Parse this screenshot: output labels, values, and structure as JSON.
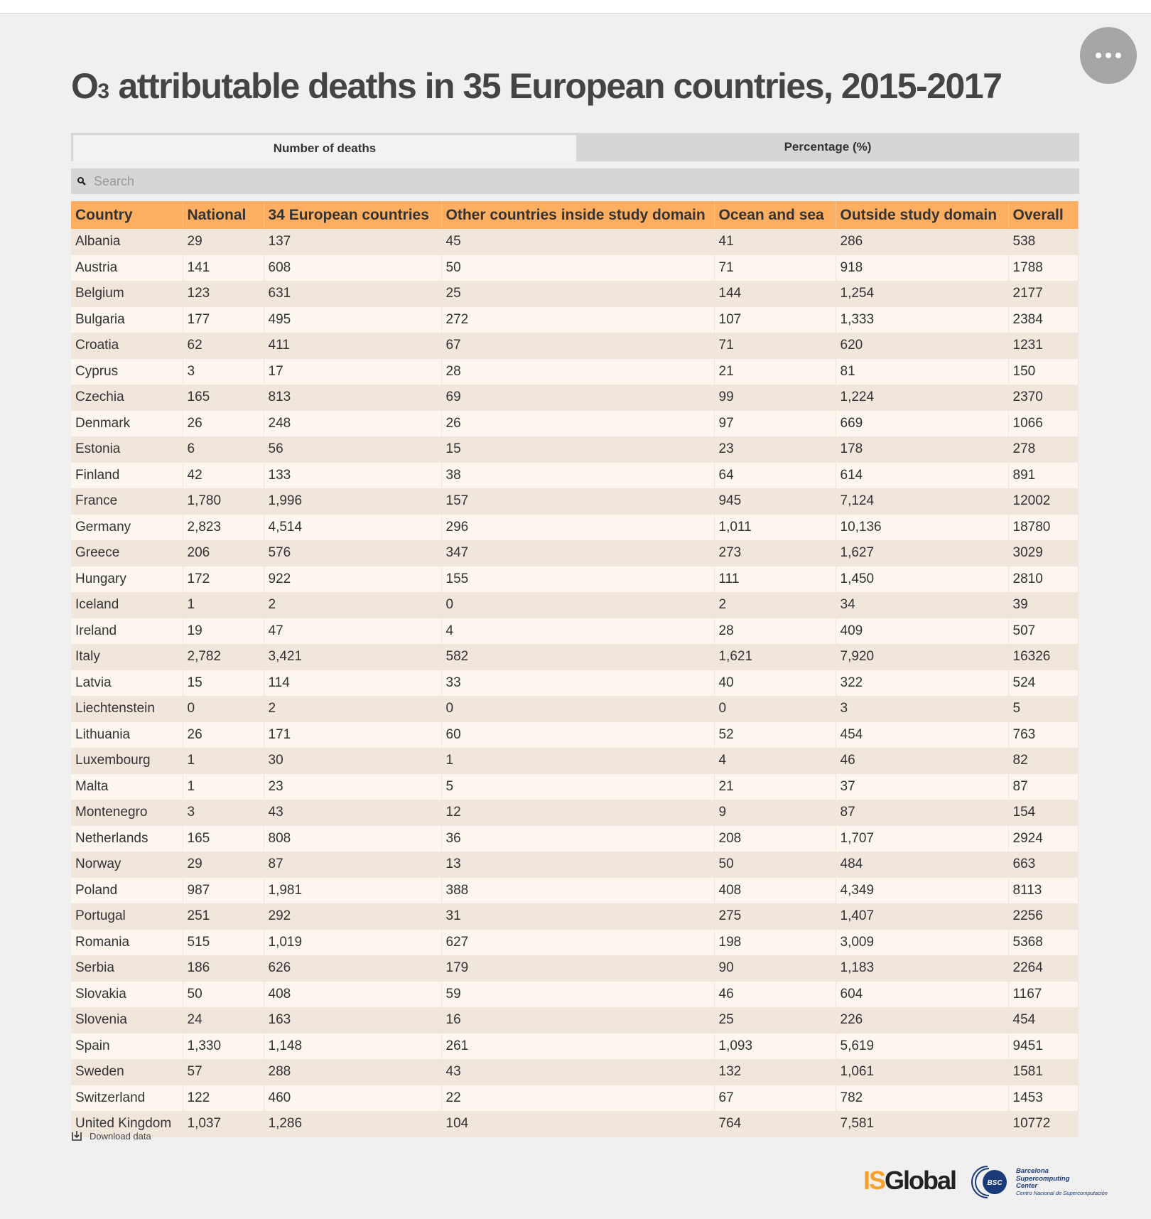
{
  "title": {
    "main": "O",
    "sub": "3",
    "rest": " attributable deaths in 35 European countries, 2015-2017"
  },
  "tabs": [
    {
      "label": "Number of deaths",
      "active": true
    },
    {
      "label": "Percentage (%)",
      "active": false
    }
  ],
  "search": {
    "placeholder": "Search",
    "value": ""
  },
  "table": {
    "headers": [
      "Country",
      "National",
      "34 European countries",
      "Other countries inside study domain",
      "Ocean and sea",
      "Outside study domain",
      "Overall"
    ],
    "rows": [
      [
        "Albania",
        "29",
        "137",
        "45",
        "41",
        "286",
        "538"
      ],
      [
        "Austria",
        "141",
        "608",
        "50",
        "71",
        "918",
        "1788"
      ],
      [
        "Belgium",
        "123",
        "631",
        "25",
        "144",
        "1,254",
        "2177"
      ],
      [
        "Bulgaria",
        "177",
        "495",
        "272",
        "107",
        "1,333",
        "2384"
      ],
      [
        "Croatia",
        "62",
        "411",
        "67",
        "71",
        "620",
        "1231"
      ],
      [
        "Cyprus",
        "3",
        "17",
        "28",
        "21",
        "81",
        "150"
      ],
      [
        "Czechia",
        "165",
        "813",
        "69",
        "99",
        "1,224",
        "2370"
      ],
      [
        "Denmark",
        "26",
        "248",
        "26",
        "97",
        "669",
        "1066"
      ],
      [
        "Estonia",
        "6",
        "56",
        "15",
        "23",
        "178",
        "278"
      ],
      [
        "Finland",
        "42",
        "133",
        "38",
        "64",
        "614",
        "891"
      ],
      [
        "France",
        "1,780",
        "1,996",
        "157",
        "945",
        "7,124",
        "12002"
      ],
      [
        "Germany",
        "2,823",
        "4,514",
        "296",
        "1,011",
        "10,136",
        "18780"
      ],
      [
        "Greece",
        "206",
        "576",
        "347",
        "273",
        "1,627",
        "3029"
      ],
      [
        "Hungary",
        "172",
        "922",
        "155",
        "111",
        "1,450",
        "2810"
      ],
      [
        "Iceland",
        "1",
        "2",
        "0",
        "2",
        "34",
        "39"
      ],
      [
        "Ireland",
        "19",
        "47",
        "4",
        "28",
        "409",
        "507"
      ],
      [
        "Italy",
        "2,782",
        "3,421",
        "582",
        "1,621",
        "7,920",
        "16326"
      ],
      [
        "Latvia",
        "15",
        "114",
        "33",
        "40",
        "322",
        "524"
      ],
      [
        "Liechtenstein",
        "0",
        "2",
        "0",
        "0",
        "3",
        "5"
      ],
      [
        "Lithuania",
        "26",
        "171",
        "60",
        "52",
        "454",
        "763"
      ],
      [
        "Luxembourg",
        "1",
        "30",
        "1",
        "4",
        "46",
        "82"
      ],
      [
        "Malta",
        "1",
        "23",
        "5",
        "21",
        "37",
        "87"
      ],
      [
        "Montenegro",
        "3",
        "43",
        "12",
        "9",
        "87",
        "154"
      ],
      [
        "Netherlands",
        "165",
        "808",
        "36",
        "208",
        "1,707",
        "2924"
      ],
      [
        "Norway",
        "29",
        "87",
        "13",
        "50",
        "484",
        "663"
      ],
      [
        "Poland",
        "987",
        "1,981",
        "388",
        "408",
        "4,349",
        "8113"
      ],
      [
        "Portugal",
        "251",
        "292",
        "31",
        "275",
        "1,407",
        "2256"
      ],
      [
        "Romania",
        "515",
        "1,019",
        "627",
        "198",
        "3,009",
        "5368"
      ],
      [
        "Serbia",
        "186",
        "626",
        "179",
        "90",
        "1,183",
        "2264"
      ],
      [
        "Slovakia",
        "50",
        "408",
        "59",
        "46",
        "604",
        "1167"
      ],
      [
        "Slovenia",
        "24",
        "163",
        "16",
        "25",
        "226",
        "454"
      ],
      [
        "Spain",
        "1,330",
        "1,148",
        "261",
        "1,093",
        "5,619",
        "9451"
      ],
      [
        "Sweden",
        "57",
        "288",
        "43",
        "132",
        "1,061",
        "1581"
      ],
      [
        "Switzerland",
        "122",
        "460",
        "22",
        "67",
        "782",
        "1453"
      ],
      [
        "United Kingdom",
        "1,037",
        "1,286",
        "104",
        "764",
        "7,581",
        "10772"
      ]
    ]
  },
  "download_label": "Download data",
  "logos": {
    "isglobal": {
      "is": "IS",
      "global": "Global"
    },
    "bsc": {
      "badge": "BSC",
      "line1": "Barcelona",
      "line2": "Supercomputing",
      "line3": "Center",
      "line4": "Centro Nacional de Supercomputación"
    }
  },
  "icons": [
    "search-icon",
    "more-dots-icon",
    "download-icon",
    "bsc-logo-icon"
  ],
  "colors": {
    "header": "#fdae61",
    "row_odd": "#f1e6dc",
    "row_even": "#fdf6ef",
    "isglobal_accent": "#f7a12c",
    "bsc_blue": "#1b3a7a"
  }
}
